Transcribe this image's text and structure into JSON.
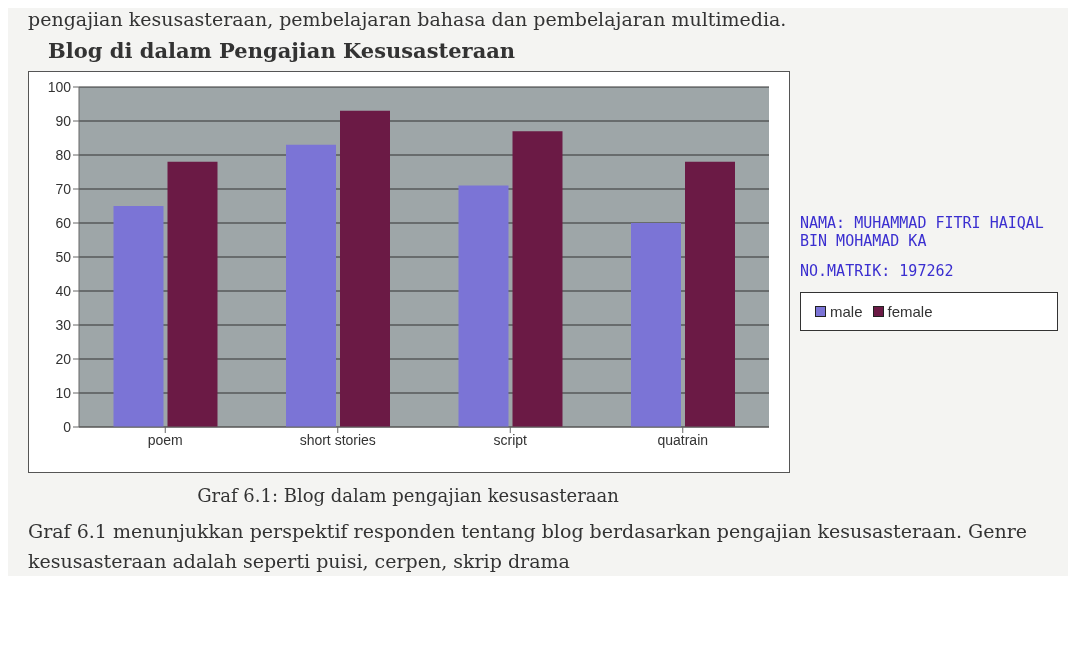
{
  "chart_data": {
    "type": "bar",
    "title": "Blog di dalam Pengajian Kesusasteraan",
    "categories": [
      "poem",
      "short stories",
      "script",
      "quatrain"
    ],
    "series": [
      {
        "name": "male",
        "color": "#7b74d6",
        "values": [
          65,
          83,
          71,
          60
        ]
      },
      {
        "name": "female",
        "color": "#6b1a45",
        "values": [
          78,
          93,
          87,
          78
        ]
      }
    ],
    "ylim": [
      0,
      100
    ],
    "yticks": [
      0,
      10,
      20,
      30,
      40,
      50,
      60,
      70,
      80,
      90,
      100
    ],
    "grid": "y",
    "legend": "right",
    "annotations": [
      "pengajian kesusasteraan, pembelajaran bahasa dan pembelajaran multimedia.",
      "NAMA: MUHAMMAD FITRI HAIQAL BIN MOHAMAD KA",
      "NO.MATRIK: 197262",
      "Graf 6.1: Blog dalam pengajian kesusasteraan",
      "Graf 6.1 menunjukkan perspektif responden tentang blog berdasarkan pengajian kesusasteraan. Genre kesusasteraan adalah seperti puisi, cerpen, skrip drama"
    ]
  }
}
